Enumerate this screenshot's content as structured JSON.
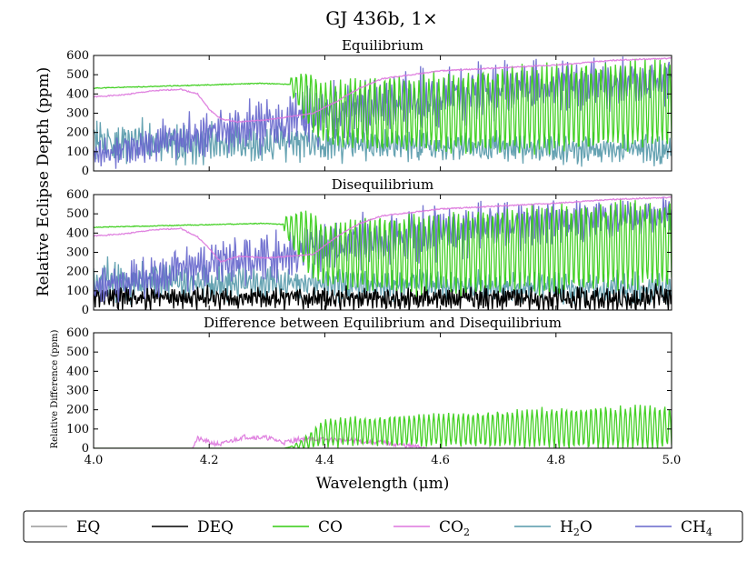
{
  "chart_data": {
    "type": "line",
    "title": "GJ 436b, 1×",
    "xlabel": "Wavelength (μm)",
    "xlim": [
      4.0,
      5.0
    ],
    "xticks": [
      "4.0",
      "4.2",
      "4.4",
      "4.6",
      "4.8",
      "5.0"
    ],
    "ylim": [
      0,
      600
    ],
    "yticks": [
      "0",
      "100",
      "200",
      "300",
      "400",
      "500",
      "600"
    ],
    "ylabel_main": "Relative Eclipse Depth (ppm)",
    "ylabel_diff": "Relative Difference (ppm)",
    "colors": {
      "EQ": "#999999",
      "DEQ": "#000000",
      "CO": "#33cc11",
      "CO2": "#dd77dd",
      "H2O": "#5599aa",
      "CH4": "#6666cc"
    },
    "panels": [
      {
        "title": "Equilibrium",
        "series": [
          {
            "name": "H2O",
            "style": "osc",
            "base": [
              [
                4.0,
                150
              ],
              [
                4.4,
                140
              ],
              [
                4.7,
                120
              ],
              [
                5.0,
                110
              ]
            ],
            "amp": [
              [
                4.0,
                110
              ],
              [
                4.35,
                90
              ],
              [
                4.6,
                70
              ],
              [
                5.0,
                80
              ]
            ],
            "period": 0.006,
            "seed": 3
          },
          {
            "name": "CH4",
            "style": "osc",
            "base": [
              [
                4.0,
                90
              ],
              [
                4.2,
                200
              ],
              [
                4.4,
                300
              ],
              [
                4.7,
                420
              ],
              [
                5.0,
                470
              ]
            ],
            "amp": [
              [
                4.0,
                70
              ],
              [
                4.2,
                120
              ],
              [
                4.5,
                150
              ],
              [
                5.0,
                110
              ]
            ],
            "period": 0.005,
            "seed": 7
          },
          {
            "name": "CO",
            "style": "cosc",
            "start": 4.34,
            "base": [
              [
                4.0,
                430
              ],
              [
                4.29,
                455
              ],
              [
                4.34,
                450
              ],
              [
                4.4,
                300
              ],
              [
                4.6,
                300
              ],
              [
                5.0,
                350
              ]
            ],
            "amp": [
              [
                4.0,
                0
              ],
              [
                4.33,
                0
              ],
              [
                4.37,
                160
              ],
              [
                4.5,
                210
              ],
              [
                4.8,
                250
              ],
              [
                5.0,
                240
              ]
            ],
            "period": 0.0085,
            "seed": 11
          },
          {
            "name": "CO2",
            "style": "smooth",
            "points": [
              [
                4.0,
                385
              ],
              [
                4.05,
                395
              ],
              [
                4.1,
                415
              ],
              [
                4.15,
                425
              ],
              [
                4.18,
                400
              ],
              [
                4.2,
                320
              ],
              [
                4.22,
                270
              ],
              [
                4.25,
                255
              ],
              [
                4.3,
                265
              ],
              [
                4.38,
                300
              ],
              [
                4.42,
                360
              ],
              [
                4.46,
                430
              ],
              [
                4.5,
                480
              ],
              [
                4.6,
                520
              ],
              [
                4.7,
                535
              ],
              [
                4.8,
                550
              ],
              [
                4.9,
                575
              ],
              [
                5.0,
                585
              ]
            ]
          }
        ]
      },
      {
        "title": "Disequilibrium",
        "series": [
          {
            "name": "H2O",
            "style": "osc",
            "base": [
              [
                4.0,
                150
              ],
              [
                4.4,
                140
              ],
              [
                4.7,
                120
              ],
              [
                5.0,
                110
              ]
            ],
            "amp": [
              [
                4.0,
                110
              ],
              [
                4.35,
                90
              ],
              [
                4.6,
                70
              ],
              [
                5.0,
                80
              ]
            ],
            "period": 0.006,
            "seed": 5
          },
          {
            "name": "DEQ",
            "style": "osc",
            "base": [
              [
                4.0,
                70
              ],
              [
                4.5,
                60
              ],
              [
                5.0,
                60
              ]
            ],
            "amp": [
              [
                4.0,
                60
              ],
              [
                4.5,
                60
              ],
              [
                5.0,
                70
              ]
            ],
            "period": 0.004,
            "seed": 17
          },
          {
            "name": "CH4",
            "style": "osc",
            "base": [
              [
                4.0,
                120
              ],
              [
                4.2,
                230
              ],
              [
                4.4,
                330
              ],
              [
                4.7,
                440
              ],
              [
                5.0,
                490
              ]
            ],
            "amp": [
              [
                4.0,
                80
              ],
              [
                4.2,
                130
              ],
              [
                4.5,
                140
              ],
              [
                5.0,
                90
              ]
            ],
            "period": 0.005,
            "seed": 9
          },
          {
            "name": "CO",
            "style": "cosc",
            "start": 4.33,
            "base": [
              [
                4.0,
                430
              ],
              [
                4.29,
                450
              ],
              [
                4.33,
                445
              ],
              [
                4.4,
                290
              ],
              [
                4.6,
                290
              ],
              [
                5.0,
                350
              ]
            ],
            "amp": [
              [
                4.0,
                0
              ],
              [
                4.32,
                0
              ],
              [
                4.36,
                170
              ],
              [
                4.5,
                220
              ],
              [
                4.8,
                250
              ],
              [
                5.0,
                240
              ]
            ],
            "period": 0.0085,
            "seed": 13
          },
          {
            "name": "CO2",
            "style": "smooth",
            "points": [
              [
                4.0,
                385
              ],
              [
                4.05,
                395
              ],
              [
                4.1,
                415
              ],
              [
                4.15,
                425
              ],
              [
                4.18,
                380
              ],
              [
                4.2,
                320
              ],
              [
                4.22,
                250
              ],
              [
                4.25,
                280
              ],
              [
                4.3,
                270
              ],
              [
                4.38,
                290
              ],
              [
                4.42,
                380
              ],
              [
                4.46,
                450
              ],
              [
                4.5,
                490
              ],
              [
                4.6,
                525
              ],
              [
                4.7,
                540
              ],
              [
                4.8,
                555
              ],
              [
                4.9,
                575
              ],
              [
                5.0,
                585
              ]
            ]
          }
        ]
      },
      {
        "title": "Difference between Equilibrium and Disequilibrium",
        "series": [
          {
            "name": "CO2",
            "style": "bump",
            "points": [
              [
                4.0,
                0
              ],
              [
                4.17,
                0
              ],
              [
                4.18,
                50
              ],
              [
                4.2,
                30
              ],
              [
                4.22,
                20
              ],
              [
                4.26,
                60
              ],
              [
                4.3,
                55
              ],
              [
                4.33,
                30
              ],
              [
                4.36,
                50
              ],
              [
                4.4,
                45
              ],
              [
                4.45,
                40
              ],
              [
                4.5,
                30
              ],
              [
                4.55,
                10
              ],
              [
                4.58,
                0
              ],
              [
                5.0,
                0
              ]
            ],
            "noise": 12,
            "seed": 21
          },
          {
            "name": "CO",
            "style": "diffosc",
            "base": [
              [
                4.0,
                0
              ],
              [
                4.33,
                0
              ],
              [
                4.36,
                20
              ],
              [
                4.4,
                80
              ],
              [
                4.5,
                90
              ],
              [
                4.7,
                100
              ],
              [
                5.0,
                110
              ]
            ],
            "amp": [
              [
                4.0,
                0
              ],
              [
                4.34,
                0
              ],
              [
                4.4,
                80
              ],
              [
                4.6,
                95
              ],
              [
                4.8,
                115
              ],
              [
                5.0,
                120
              ]
            ],
            "period": 0.0085,
            "seed": 23
          }
        ]
      }
    ],
    "legend": {
      "position": "bottom",
      "entries": [
        {
          "key": "EQ",
          "label": "EQ"
        },
        {
          "key": "DEQ",
          "label": "DEQ"
        },
        {
          "key": "CO",
          "label": "CO"
        },
        {
          "key": "CO2",
          "label": "CO",
          "sub": "2"
        },
        {
          "key": "H2O",
          "label": "H",
          "sub": "2",
          "tail": "O"
        },
        {
          "key": "CH4",
          "label": "CH",
          "sub": "4"
        }
      ]
    }
  }
}
